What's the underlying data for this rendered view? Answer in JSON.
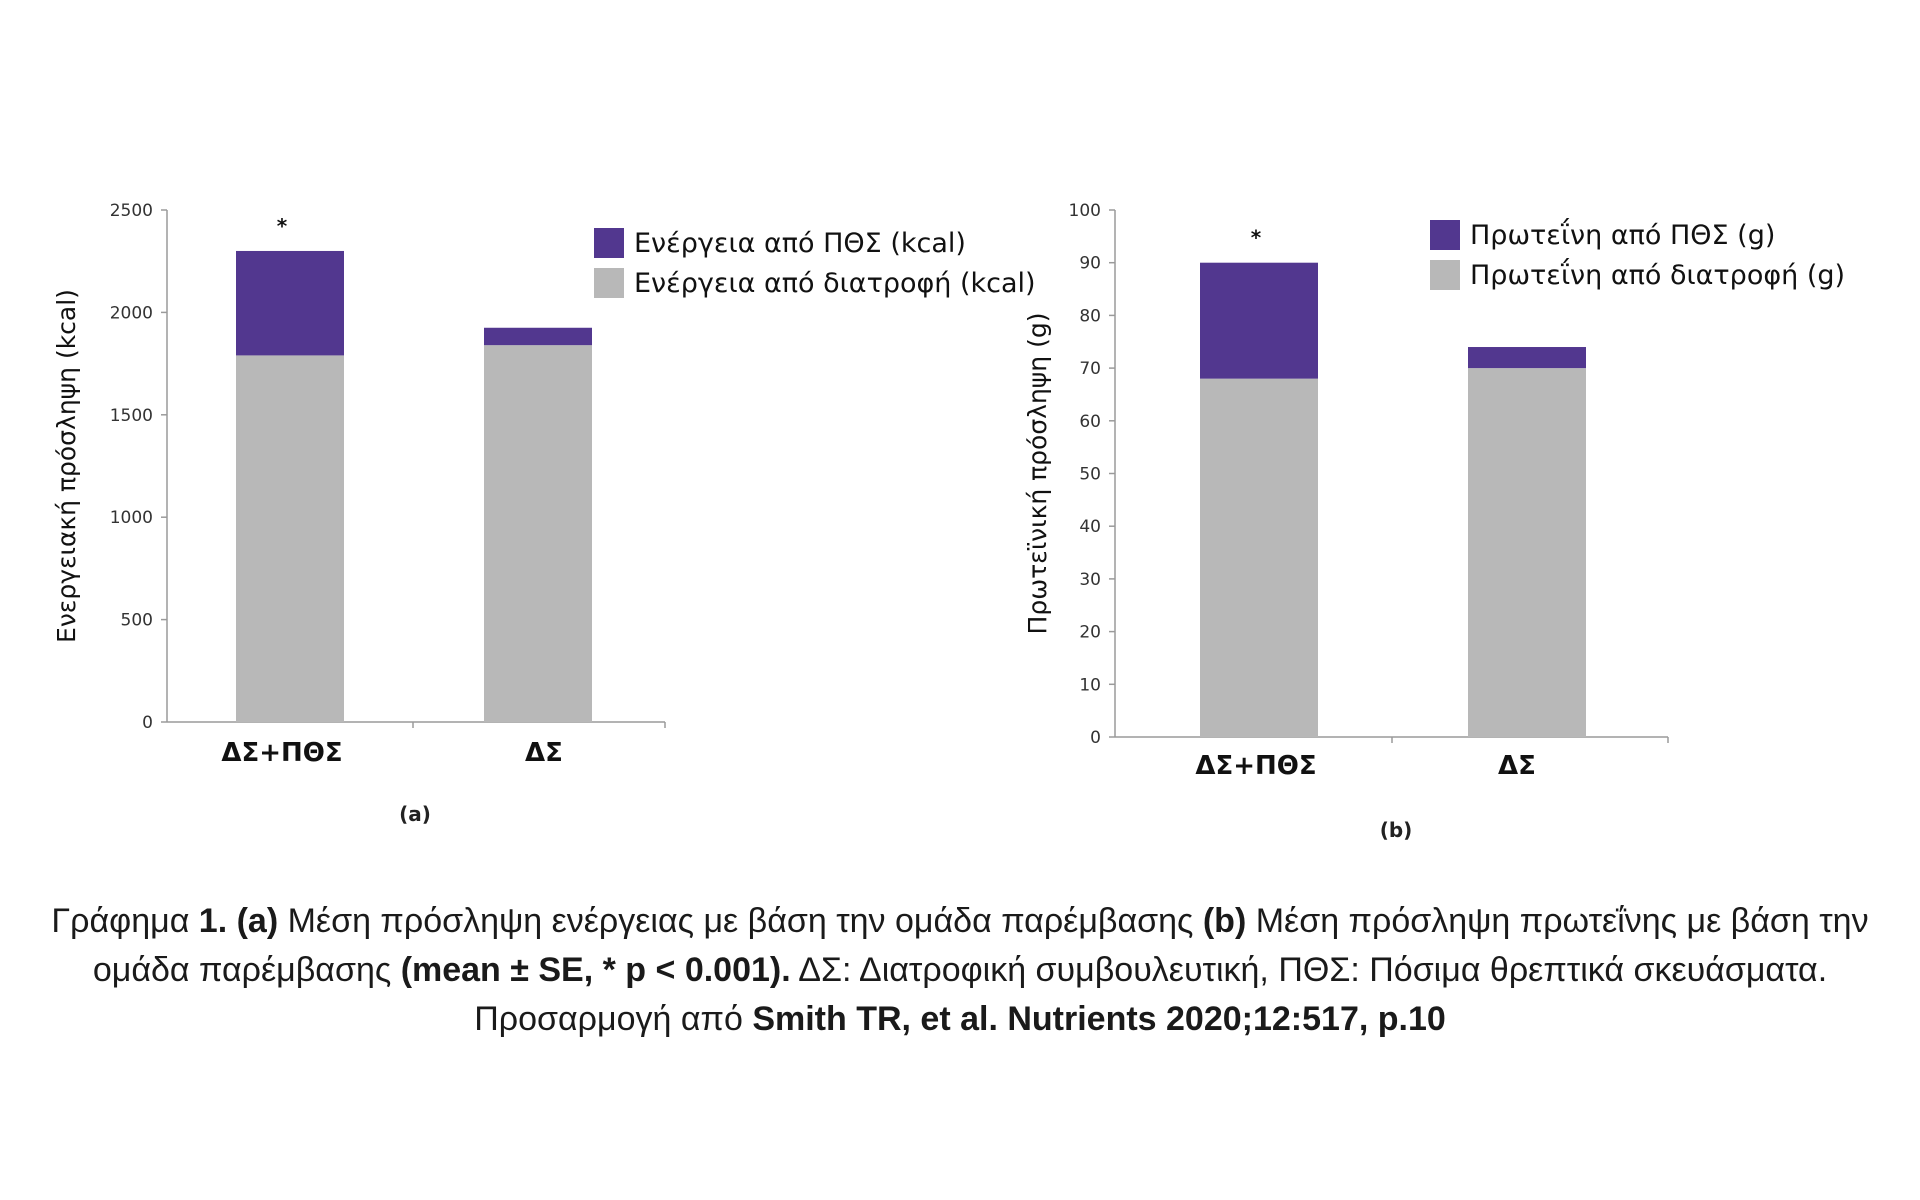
{
  "chart_data": [
    {
      "type": "bar",
      "stacked": true,
      "panel_label": "(a)",
      "categories": [
        "ΔΣ+ΠΘΣ",
        "ΔΣ"
      ],
      "series": [
        {
          "name": "Ενέργεια από διατροφή (kcal)",
          "values": [
            1790,
            1840
          ],
          "color": "#b8b8b8"
        },
        {
          "name": "Ενέργεια από ΠΘΣ (kcal)",
          "values": [
            510,
            85
          ],
          "color": "#52378f"
        }
      ],
      "ylabel": "Ενεργειακή πρόσληψη (kcal)",
      "ylim": [
        0,
        2500
      ],
      "yticks": [
        0,
        500,
        1000,
        1500,
        2000,
        2500
      ],
      "significance": [
        {
          "category": "ΔΣ+ΠΘΣ",
          "label": "*"
        }
      ],
      "legend_position": "top-right"
    },
    {
      "type": "bar",
      "stacked": true,
      "panel_label": "(b)",
      "categories": [
        "ΔΣ+ΠΘΣ",
        "ΔΣ"
      ],
      "series": [
        {
          "name": "Πρωτεΐνη από διατροφή (g)",
          "values": [
            68,
            70
          ],
          "color": "#b8b8b8"
        },
        {
          "name": "Πρωτεΐνη από ΠΘΣ (g)",
          "values": [
            22,
            4
          ],
          "color": "#52378f"
        }
      ],
      "ylabel": "Πρωτεϊνική πρόσληψη (g)",
      "ylim": [
        0,
        100
      ],
      "yticks": [
        0,
        10,
        20,
        30,
        40,
        50,
        60,
        70,
        80,
        90,
        100
      ],
      "significance": [
        {
          "category": "ΔΣ+ΠΘΣ",
          "label": "*"
        }
      ],
      "legend_position": "top-right"
    }
  ],
  "caption": {
    "lead": "Γράφημα ",
    "number": "1. (a)",
    "part_a": " Μέση πρόσληψη ενέργειας με βάση την ομάδα παρέμβασης ",
    "b_marker": "(b)",
    "part_b": " Μέση πρόσληψη πρωτεΐνης με βάση την ομάδα παρέμβασης ",
    "stats": "(mean ± SE, * p < 0.001).",
    "abbrev": " ΔΣ: Διατροφική συμβουλευτική, ΠΘΣ: Πόσιμα θρεπτικά σκευάσματα. Προσαρμογή από ",
    "reference": "Smith TR, et al. Nutrients 2020;12:517, p.10"
  }
}
